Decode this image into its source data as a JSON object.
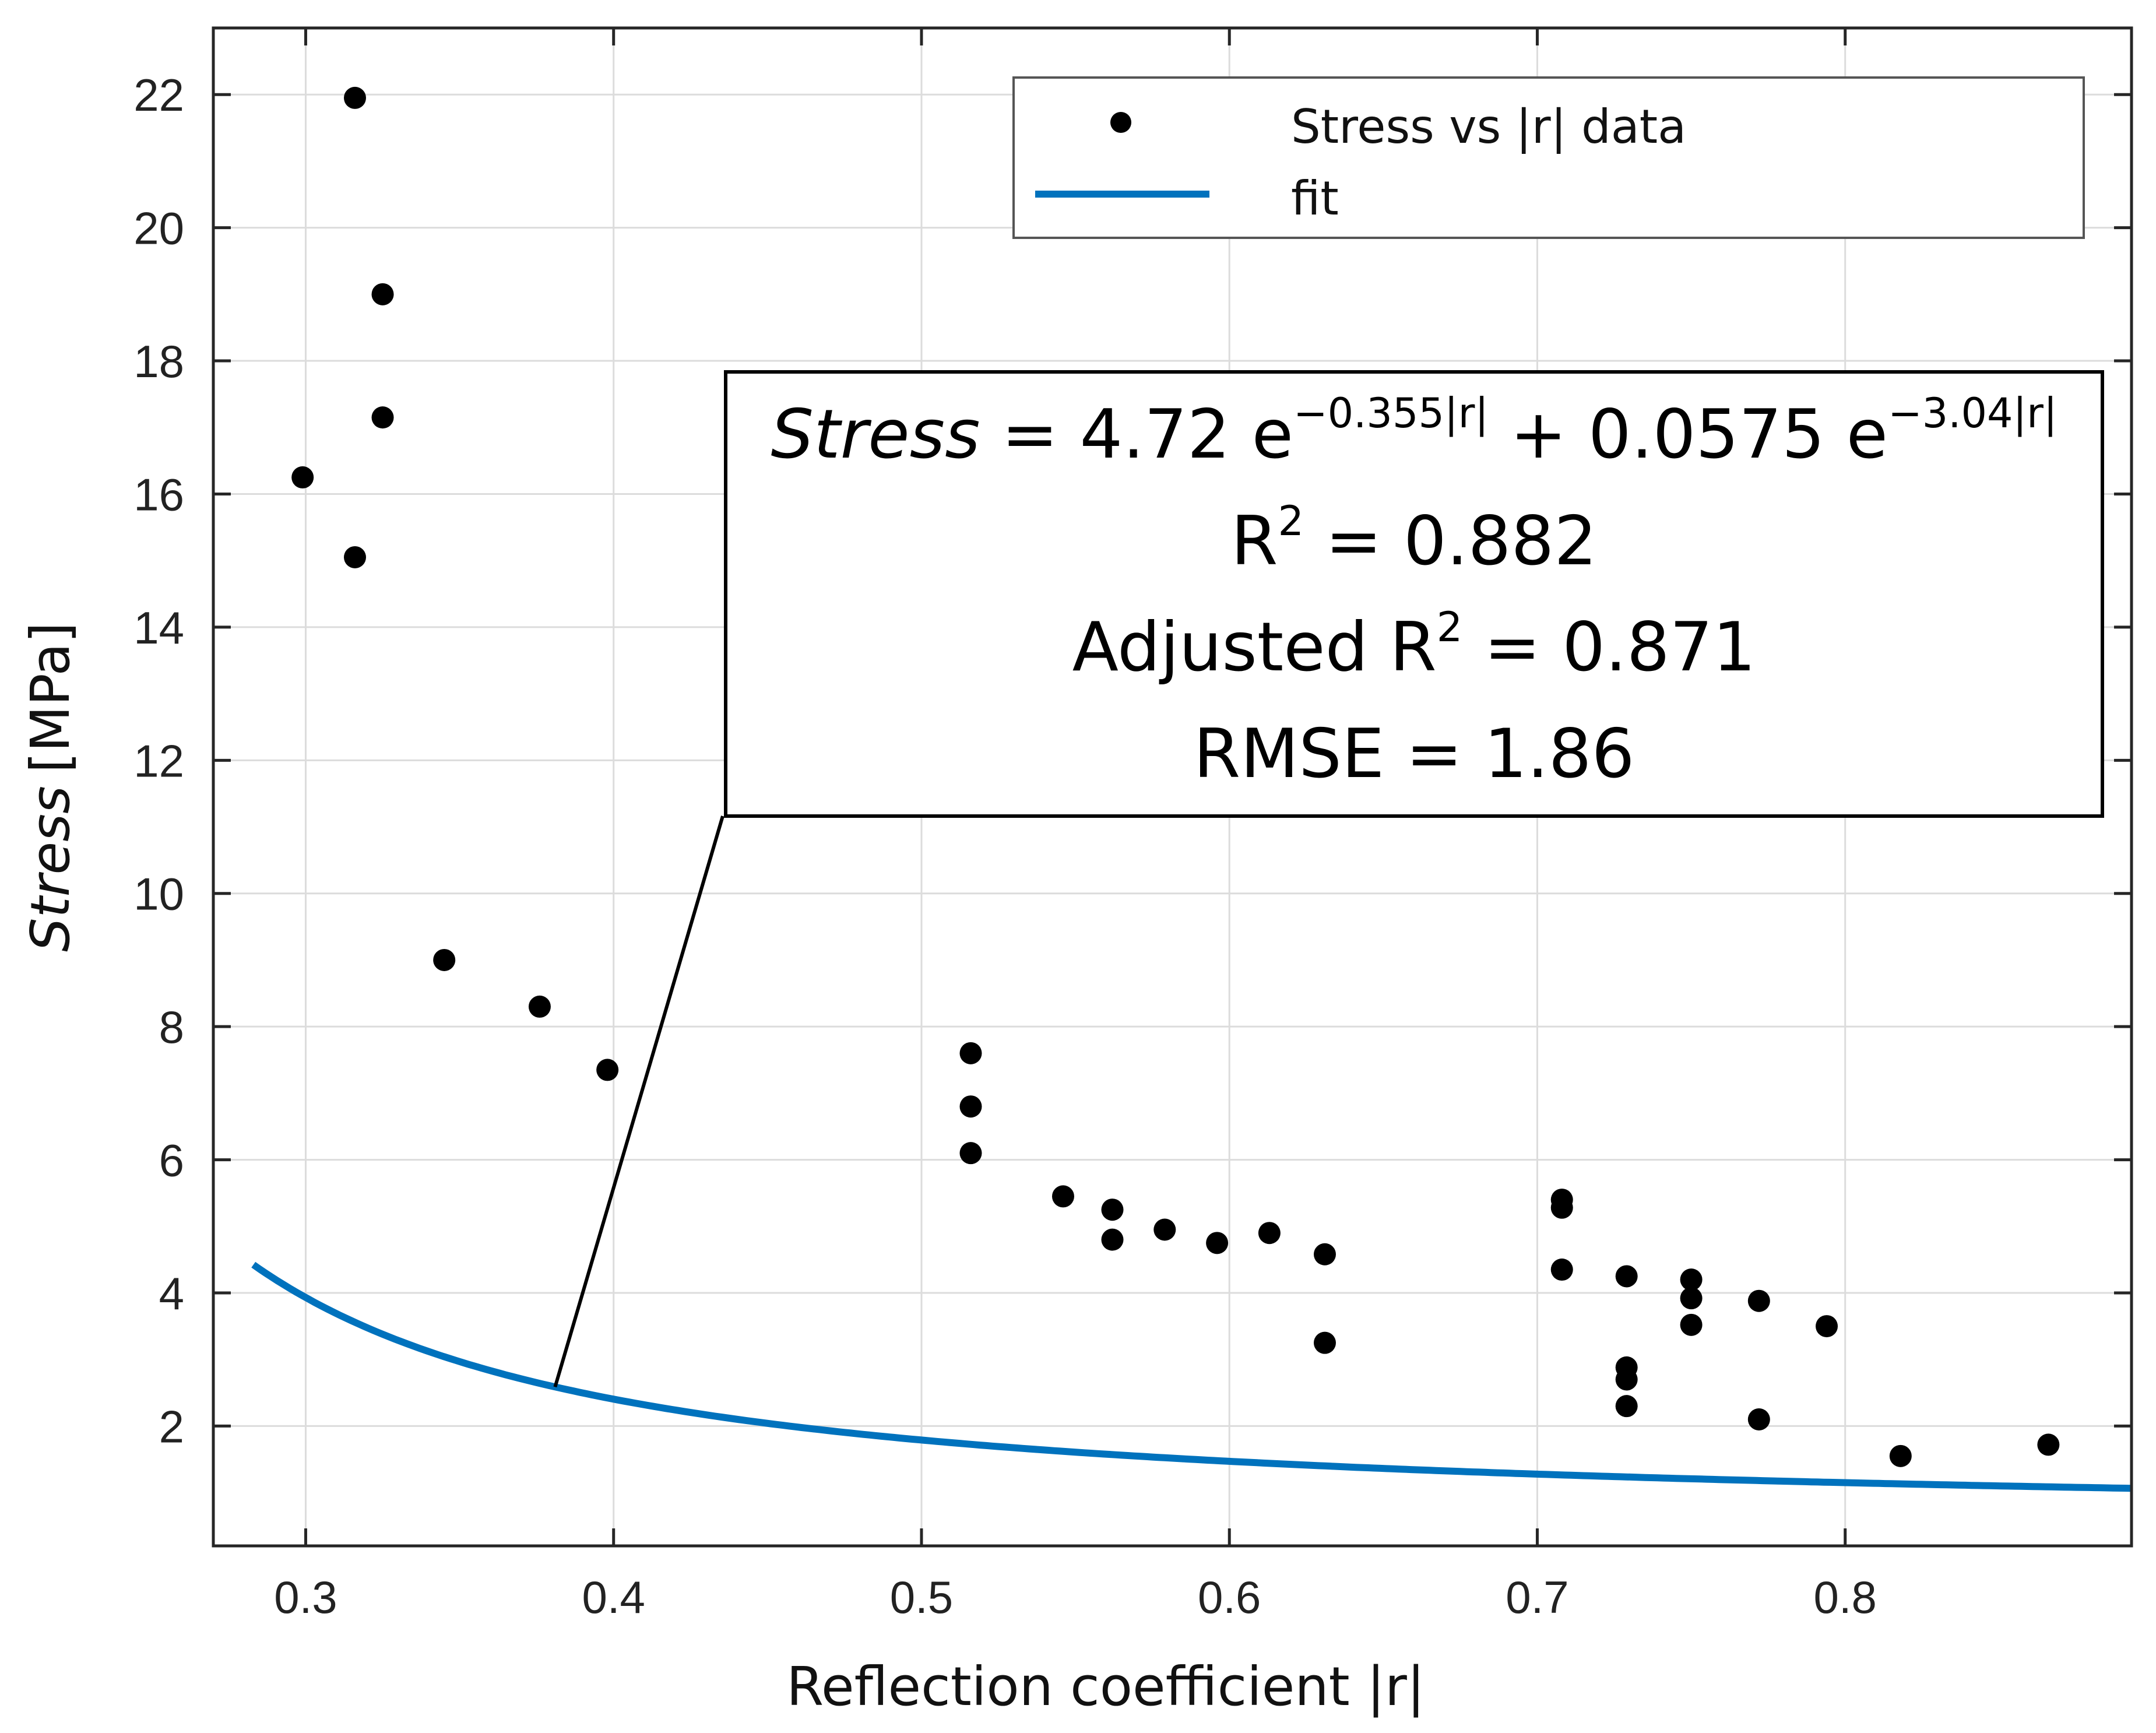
{
  "chart_data": {
    "type": "scatter",
    "title": "",
    "xlabel": "Reflection coefficient |r|",
    "ylabel_italic": "Stress",
    "ylabel_unit": "[MPa]",
    "xlim": [
      0.27,
      0.893
    ],
    "ylim": [
      0.2,
      23
    ],
    "xticks": [
      0.3,
      0.4,
      0.5,
      0.6,
      0.7,
      0.8
    ],
    "xtick_labels": [
      "0.3",
      "0.4",
      "0.5",
      "0.6",
      "0.7",
      "0.8"
    ],
    "yticks": [
      2,
      4,
      6,
      8,
      10,
      12,
      14,
      16,
      18,
      20,
      22
    ],
    "ytick_labels": [
      "2",
      "4",
      "6",
      "8",
      "10",
      "12",
      "14",
      "16",
      "18",
      "20",
      "22"
    ],
    "grid": true,
    "legend_position": "top-right",
    "series": [
      {
        "name": "Stress vs |r| data",
        "kind": "points",
        "color": "#000000",
        "points": [
          [
            0.299,
            16.25
          ],
          [
            0.316,
            21.95
          ],
          [
            0.316,
            15.05
          ],
          [
            0.325,
            19.0
          ],
          [
            0.325,
            17.15
          ],
          [
            0.345,
            9.0
          ],
          [
            0.376,
            8.3
          ],
          [
            0.398,
            7.35
          ],
          [
            0.516,
            7.6
          ],
          [
            0.516,
            6.8
          ],
          [
            0.516,
            6.1
          ],
          [
            0.546,
            5.45
          ],
          [
            0.562,
            5.25
          ],
          [
            0.562,
            4.8
          ],
          [
            0.579,
            4.95
          ],
          [
            0.596,
            4.75
          ],
          [
            0.613,
            4.9
          ],
          [
            0.631,
            4.58
          ],
          [
            0.631,
            3.25
          ],
          [
            0.708,
            5.4
          ],
          [
            0.708,
            5.28
          ],
          [
            0.708,
            4.35
          ],
          [
            0.729,
            4.25
          ],
          [
            0.729,
            2.88
          ],
          [
            0.729,
            2.7
          ],
          [
            0.729,
            2.3
          ],
          [
            0.75,
            4.2
          ],
          [
            0.75,
            3.92
          ],
          [
            0.75,
            3.52
          ],
          [
            0.772,
            3.88
          ],
          [
            0.772,
            2.1
          ],
          [
            0.794,
            3.5
          ],
          [
            0.818,
            1.55
          ],
          [
            0.866,
            1.72
          ]
        ]
      },
      {
        "name": "fit",
        "kind": "curve",
        "color": "#0072BD",
        "model": {
          "a": 4.72,
          "b": -0.355,
          "c": 0.0575,
          "d": -3.04
        }
      }
    ],
    "annotation": {
      "equation_stress": "Stress",
      "equation_mid": " = 4.72 e",
      "equation_exp1": "−0.355|r|",
      "equation_plus": " + 0.0575 e",
      "equation_exp2": "−3.04|r|",
      "r2_prefix": "R",
      "r2_sup": "2",
      "r2_value": " = 0.882",
      "adj_prefix": "Adjusted R",
      "adj_sup": "2",
      "adj_value": " = 0.871",
      "rmse": "RMSE = 1.86",
      "pointer_x": 0.381
    }
  }
}
